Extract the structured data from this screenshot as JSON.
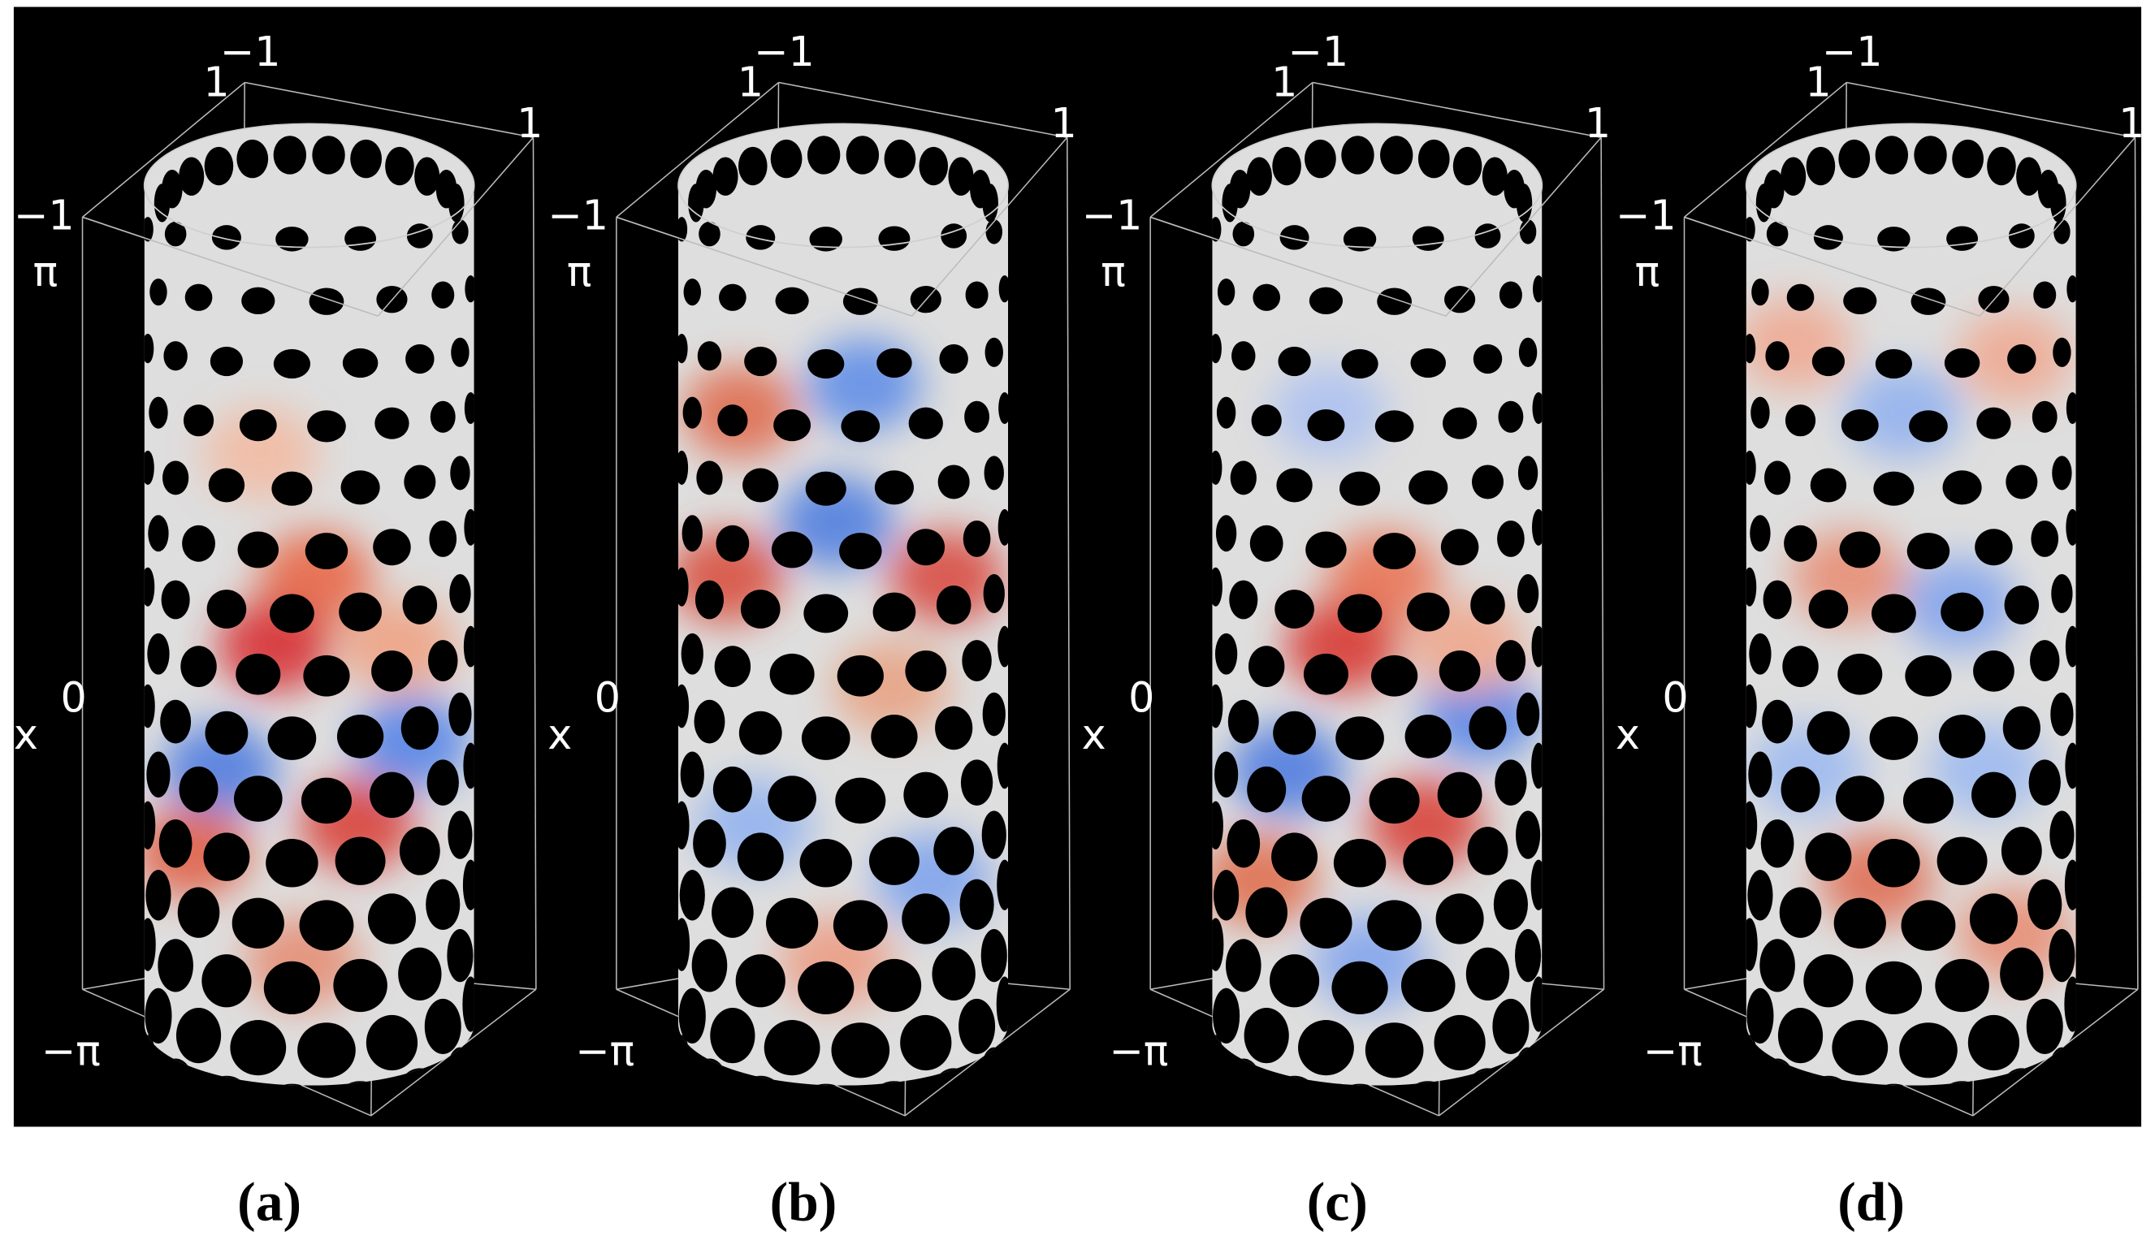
{
  "panels": [
    {
      "caption": "(a)",
      "labels": {
        "top_max": "1",
        "top_min": "−1",
        "right_max": "1",
        "left_min": "−1",
        "z_max": "π",
        "z_title": "x",
        "z_mid": "0",
        "z_min": "−π"
      }
    },
    {
      "caption": "(b)",
      "labels": {
        "top_max": "1",
        "top_min": "−1",
        "right_max": "1",
        "left_min": "−1",
        "z_max": "π",
        "z_title": "x",
        "z_mid": "0",
        "z_min": "−π"
      }
    },
    {
      "caption": "(c)",
      "labels": {
        "top_max": "1",
        "top_min": "−1",
        "right_max": "1",
        "left_min": "−1",
        "z_max": "π",
        "z_title": "x",
        "z_mid": "0",
        "z_min": "−π"
      }
    },
    {
      "caption": "(d)",
      "labels": {
        "top_max": "1",
        "top_min": "−1",
        "right_max": "1",
        "left_min": "−1",
        "z_max": "π",
        "z_title": "x",
        "z_mid": "0",
        "z_min": "−π"
      }
    }
  ]
}
